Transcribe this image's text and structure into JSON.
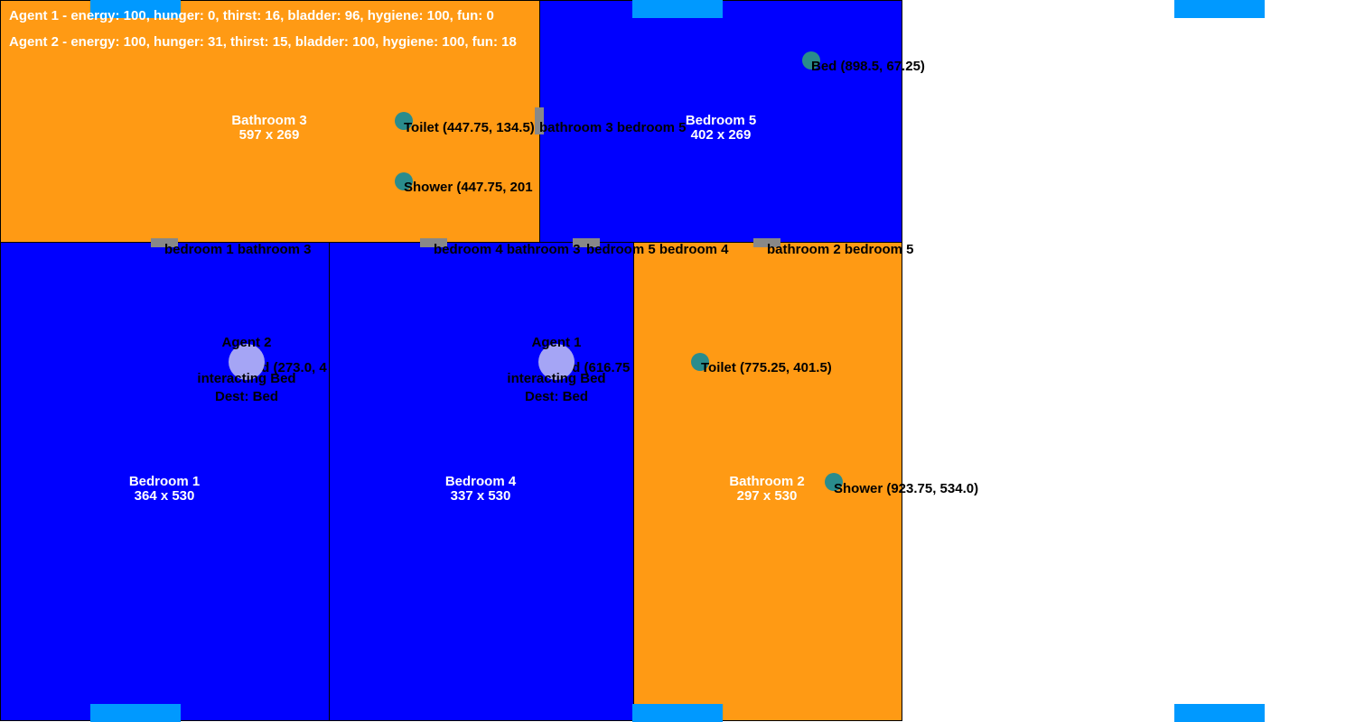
{
  "colors": {
    "bedroom": "#0000ff",
    "bathroom": "#ff9a14",
    "vent": "#0099ff",
    "door": "#888888",
    "object": "#2a8c8c",
    "agent": "#a5a5f5"
  },
  "status": [
    "Agent 1 - energy: 100, hunger: 0, thirst: 16, bladder: 96, hygiene: 100, fun: 0",
    "Agent 2 - energy: 100, hunger: 31, thirst: 15, bladder: 100, hygiene: 100, fun: 18"
  ],
  "rooms": [
    {
      "name": "Bathroom 3",
      "size": "597 x 269"
    },
    {
      "name": "Bedroom 5",
      "size": "402 x 269"
    },
    {
      "name": "Bedroom 1",
      "size": "364 x 530"
    },
    {
      "name": "Bedroom 4",
      "size": "337 x 530"
    },
    {
      "name": "Bathroom 2",
      "size": "297 x 530"
    }
  ],
  "doors": [
    "bathroom 3 bedroom 5",
    "bedroom 1 bathroom 3",
    "bedroom 4 bathroom 3",
    "bedroom 5 bedroom 4",
    "bathroom 2 bedroom 5"
  ],
  "objects": [
    "Toilet (447.75, 134.5)",
    "Shower (447.75, 201",
    "Bed (898.5, 67.25)",
    "Toilet (775.25, 401.5)",
    "Shower (923.75, 534.0)",
    "Bed (273.0, 4",
    "Bed (616.75"
  ],
  "agents": [
    {
      "name": "Agent 2",
      "state": "interacting Bed",
      "dest": "Dest: Bed"
    },
    {
      "name": "Agent 1",
      "state": "interacting Bed",
      "dest": "Dest: Bed"
    }
  ]
}
